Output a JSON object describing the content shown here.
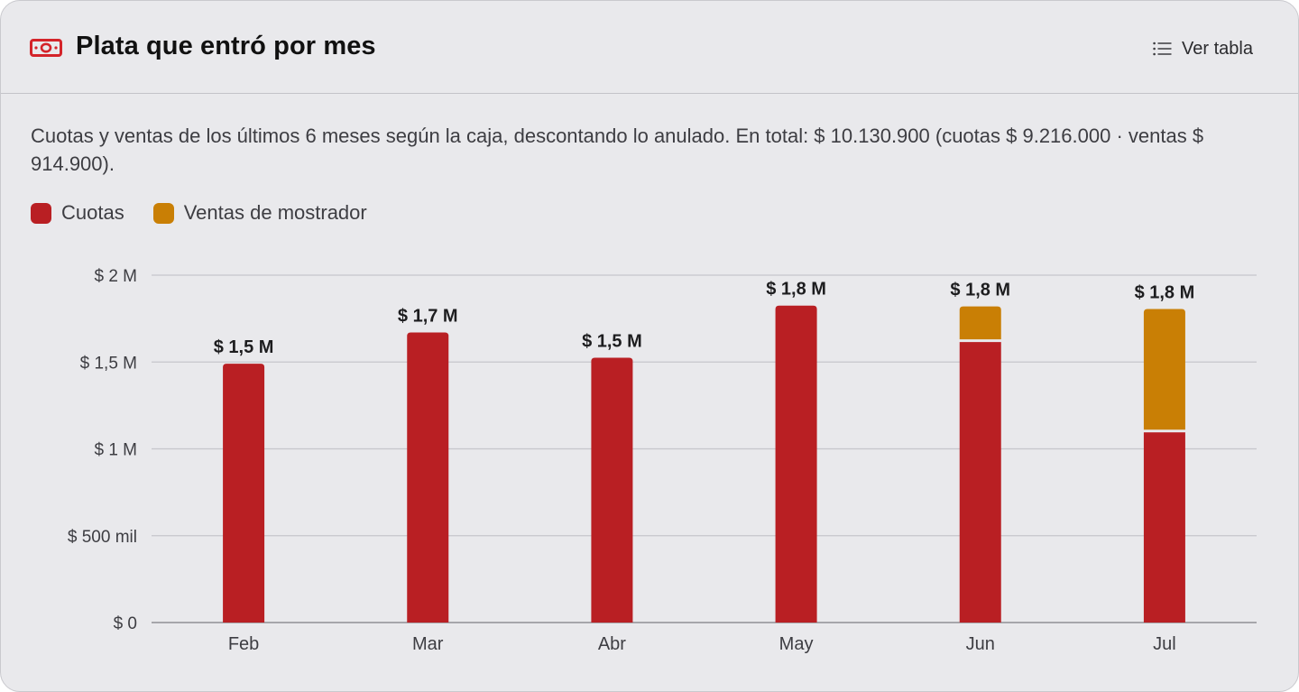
{
  "header": {
    "icon": "banknote-icon",
    "title": "Plata que entró por mes",
    "view_table": {
      "icon": "list-icon",
      "label": "Ver tabla"
    }
  },
  "description": "Cuotas y ventas de los últimos 6 meses según la caja, descontando lo anulado. En total: $ 10.130.900 (cuotas $ 9.216.000 · ventas $ 914.900).",
  "colors": {
    "cuotas": "#b91f23",
    "ventas": "#c97f05",
    "grid": "#c6c6cb",
    "accent_icon": "#d4242a"
  },
  "chart_data": {
    "type": "bar",
    "stacked": true,
    "categories": [
      "Feb",
      "Mar",
      "Abr",
      "May",
      "Jun",
      "Jul"
    ],
    "series": [
      {
        "name": "Cuotas",
        "color": "#b91f23",
        "values": [
          1490000,
          1670000,
          1525000,
          1825000,
          1615000,
          1095000
        ]
      },
      {
        "name": "Ventas de mostrador",
        "color": "#c97f05",
        "values": [
          0,
          0,
          0,
          0,
          205000,
          710000
        ]
      }
    ],
    "total_labels": [
      "$ 1,5 M",
      "$ 1,7 M",
      "$ 1,5 M",
      "$ 1,8 M",
      "$ 1,8 M",
      "$ 1,8 M"
    ],
    "y_ticks": [
      {
        "value": 0,
        "label": "$ 0"
      },
      {
        "value": 500000,
        "label": "$ 500 mil"
      },
      {
        "value": 1000000,
        "label": "$ 1 M"
      },
      {
        "value": 1500000,
        "label": "$ 1,5 M"
      },
      {
        "value": 2000000,
        "label": "$ 2 M"
      }
    ],
    "ylim": [
      0,
      2000000
    ],
    "grid": true,
    "legend_position": "top-left"
  }
}
